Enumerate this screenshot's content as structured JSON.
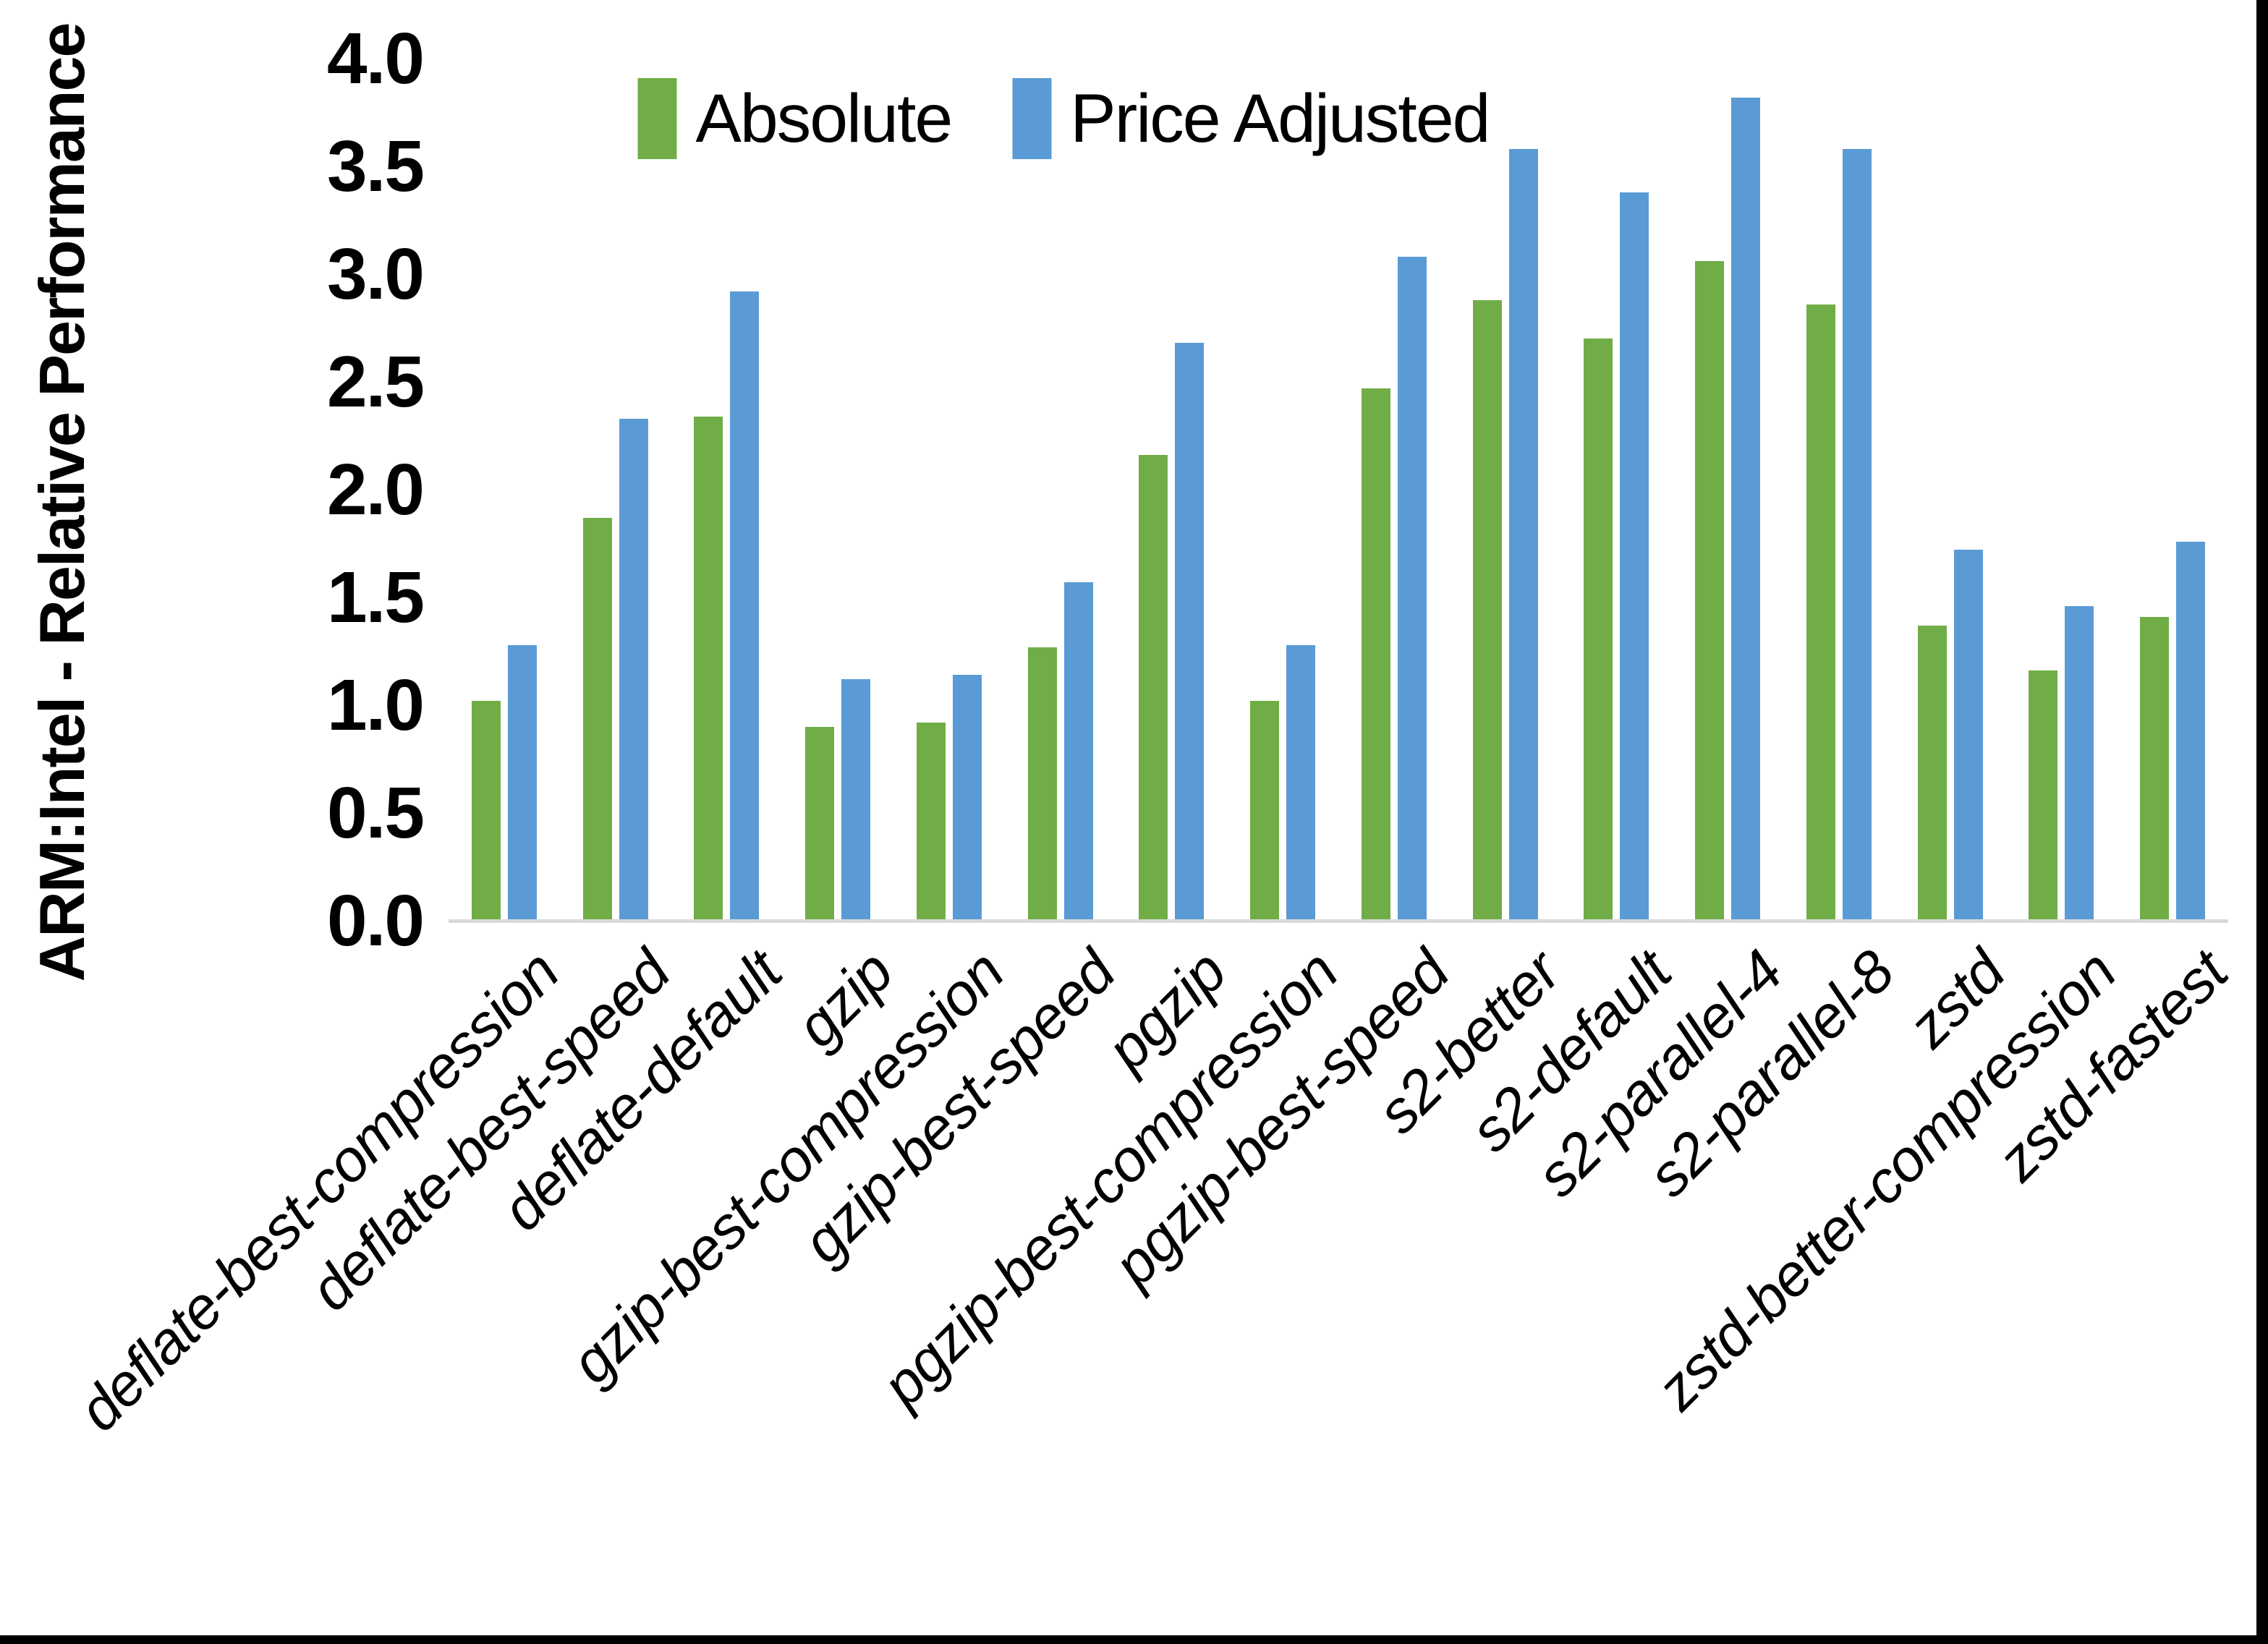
{
  "chart_data": {
    "type": "bar",
    "title": "",
    "xlabel": "",
    "ylabel": "ARM:Intel - Relative Performance",
    "ylim": [
      0,
      4.0
    ],
    "ytick_labels": [
      "4.0",
      "3.5",
      "3.0",
      "2.5",
      "2.0",
      "1.5",
      "1.0",
      "0.5",
      "0.0"
    ],
    "grid": false,
    "legend_position": "top-center",
    "axis_line_color": "#D9D9D9",
    "categories": [
      "deflate-best-compression",
      "deflate-best-speed",
      "deflate-default",
      "gzip",
      "gzip-best-compression",
      "gzip-best-speed",
      "pgzip",
      "pgzip-best-compression",
      "pgzip-best-speed",
      "s2-better",
      "s2-default",
      "s2-parallel-4",
      "s2-parallel-8",
      "zstd",
      "zstd-better-compression",
      "zstd-fastest"
    ],
    "series": [
      {
        "name": "Absolute",
        "color": "#70AD47",
        "values": [
          1.02,
          1.87,
          2.34,
          0.9,
          0.92,
          1.27,
          2.16,
          1.02,
          2.47,
          2.88,
          2.7,
          3.06,
          2.86,
          1.37,
          1.16,
          1.41
        ]
      },
      {
        "name": "Price Adjusted",
        "color": "#5B9BD5",
        "values": [
          1.28,
          2.33,
          2.92,
          1.12,
          1.14,
          1.57,
          2.68,
          1.28,
          3.08,
          3.58,
          3.38,
          3.82,
          3.58,
          1.72,
          1.46,
          1.76
        ]
      }
    ]
  }
}
